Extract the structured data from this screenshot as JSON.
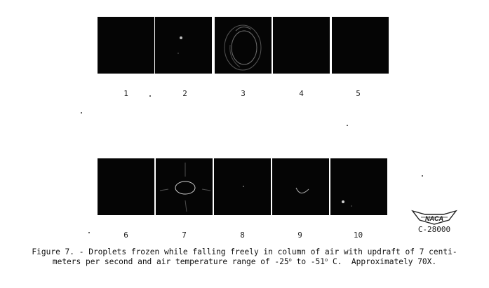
{
  "figure": {
    "row1": [
      "1",
      "2",
      "3",
      "4",
      "5"
    ],
    "row2": [
      "6",
      "7",
      "8",
      "9",
      "10"
    ],
    "logo_text": "NACA",
    "logo_code": "C-28000",
    "caption": {
      "line1_pre": "Figure 7. - Droplets frozen while falling freely in column of air with updraft of 7 centi-",
      "line2_a": "meters per second and air temperature range of -25",
      "deg1": "o",
      "line2_b": " to -51",
      "deg2": "o",
      "line2_c": " C.  Approximately 70X."
    }
  }
}
